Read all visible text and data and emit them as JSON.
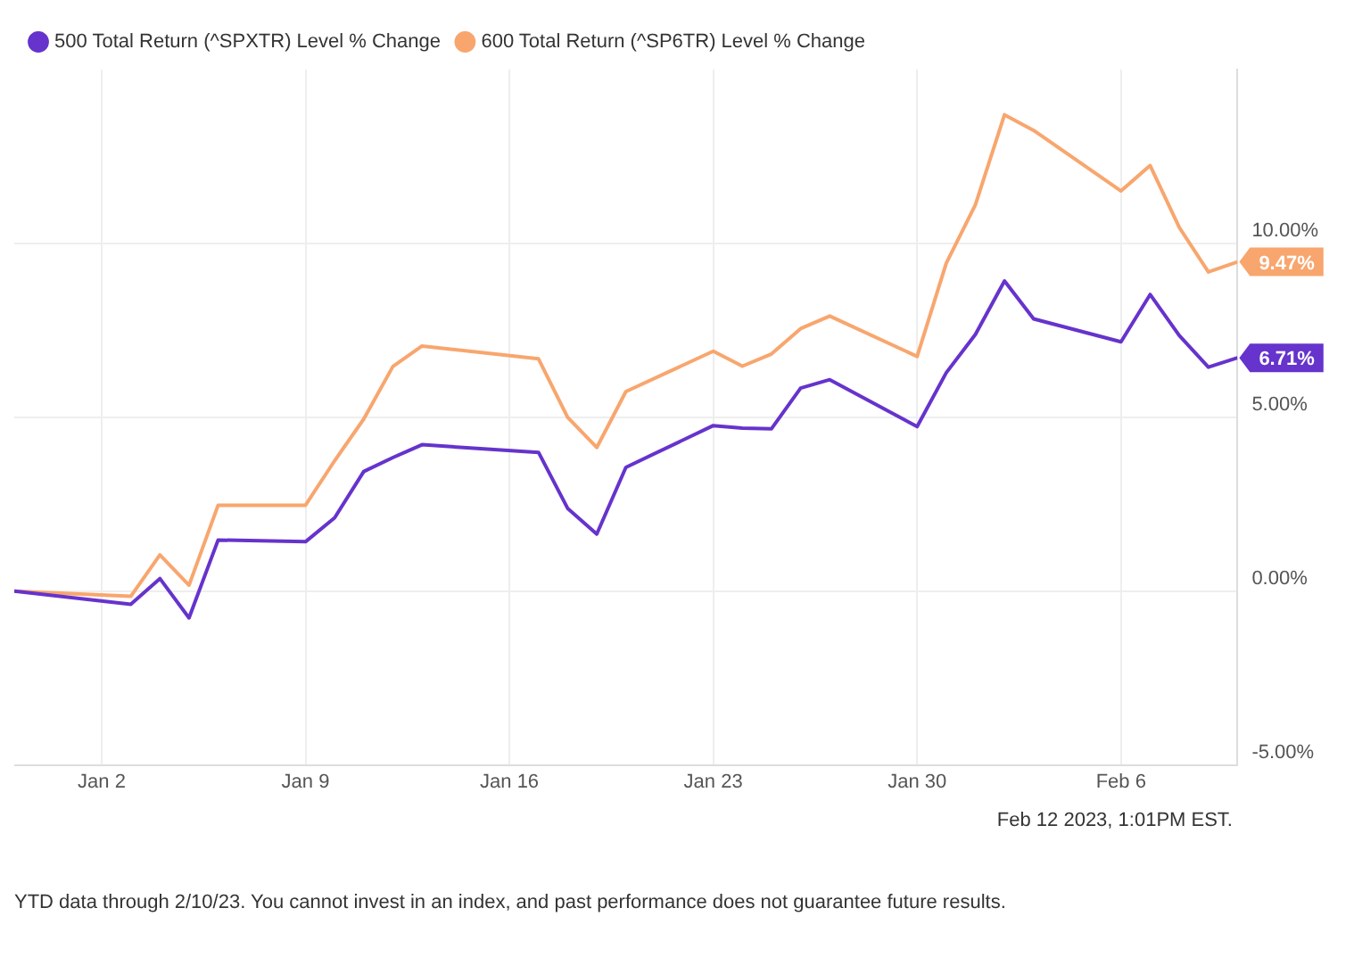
{
  "chart_data": {
    "type": "line",
    "x": [
      "2022-12-30",
      "2023-01-03",
      "2023-01-04",
      "2023-01-05",
      "2023-01-06",
      "2023-01-09",
      "2023-01-10",
      "2023-01-11",
      "2023-01-12",
      "2023-01-13",
      "2023-01-17",
      "2023-01-18",
      "2023-01-19",
      "2023-01-20",
      "2023-01-23",
      "2023-01-24",
      "2023-01-25",
      "2023-01-26",
      "2023-01-27",
      "2023-01-30",
      "2023-01-31",
      "2023-02-01",
      "2023-02-02",
      "2023-02-03",
      "2023-02-06",
      "2023-02-07",
      "2023-02-08",
      "2023-02-09",
      "2023-02-10"
    ],
    "series": [
      {
        "name": "500 Total Return (^SPXTR) Level % Change",
        "color": "#6633cc",
        "values": [
          0,
          -0.38,
          0.36,
          -0.77,
          1.47,
          1.42,
          2.11,
          3.44,
          3.84,
          4.21,
          3.99,
          2.38,
          1.64,
          3.56,
          4.76,
          4.69,
          4.67,
          5.84,
          6.08,
          4.73,
          6.28,
          7.38,
          8.92,
          7.83,
          7.17,
          8.53,
          7.35,
          6.44,
          6.71
        ],
        "value_labels": [
          null,
          null,
          null,
          null,
          null,
          null,
          null,
          null,
          null,
          null,
          null,
          null,
          null,
          null,
          null,
          null,
          null,
          null,
          null,
          null,
          null,
          null,
          null,
          null,
          null,
          null,
          null,
          null,
          "6.71%"
        ]
      },
      {
        "name": "600 Total Return (^SP6TR) Level % Change",
        "color": "#f8a66e",
        "values": [
          0,
          -0.15,
          1.04,
          0.17,
          2.47,
          2.47,
          3.75,
          4.95,
          6.46,
          7.05,
          6.68,
          5.0,
          4.13,
          5.74,
          6.9,
          6.47,
          6.82,
          7.55,
          7.91,
          6.75,
          9.43,
          11.11,
          13.7,
          13.25,
          11.51,
          12.24,
          10.46,
          9.18,
          9.47
        ],
        "value_labels": [
          null,
          null,
          null,
          null,
          null,
          null,
          null,
          null,
          null,
          null,
          null,
          null,
          null,
          null,
          null,
          null,
          null,
          null,
          null,
          null,
          null,
          null,
          null,
          null,
          null,
          null,
          null,
          null,
          "9.47%"
        ]
      }
    ],
    "xlim": [
      "2022-12-30",
      "2023-02-10"
    ],
    "xticks": [
      {
        "value": "2023-01-02",
        "label": "Jan 2"
      },
      {
        "value": "2023-01-09",
        "label": "Jan 9"
      },
      {
        "value": "2023-01-16",
        "label": "Jan 16"
      },
      {
        "value": "2023-01-23",
        "label": "Jan 23"
      },
      {
        "value": "2023-01-30",
        "label": "Jan 30"
      },
      {
        "value": "2023-02-06",
        "label": "Feb 6"
      }
    ],
    "ylim": [
      -5,
      15
    ],
    "yticks": [
      {
        "value": -5,
        "label": "-5.00%"
      },
      {
        "value": 0,
        "label": "0.00%"
      },
      {
        "value": 5,
        "label": "5.00%"
      },
      {
        "value": 10,
        "label": "10.00%"
      }
    ],
    "grid": true,
    "legend": "top left",
    "marker": "none",
    "line_style": "solid",
    "annotations": [
      "Feb 12 2023, 1:01PM EST.",
      "YTD data through 2/10/23. You cannot invest in an index, and past performance does not guarantee future results."
    ]
  }
}
